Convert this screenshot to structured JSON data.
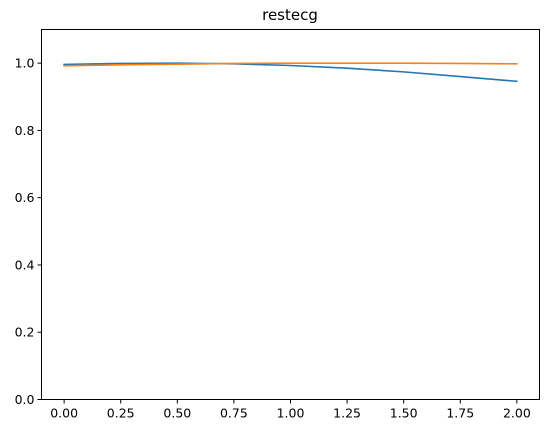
{
  "chart_data": {
    "type": "line",
    "title": "restecg",
    "xlabel": "",
    "ylabel": "",
    "xlim": [
      -0.1,
      2.1
    ],
    "ylim": [
      0.0,
      1.1
    ],
    "xticks": [
      0.0,
      0.25,
      0.5,
      0.75,
      1.0,
      1.25,
      1.5,
      1.75,
      2.0
    ],
    "xtick_labels": [
      "0.00",
      "0.25",
      "0.50",
      "0.75",
      "1.00",
      "1.25",
      "1.50",
      "1.75",
      "2.00"
    ],
    "yticks": [
      0.0,
      0.2,
      0.4,
      0.6,
      0.8,
      1.0
    ],
    "ytick_labels": [
      "0.0",
      "0.2",
      "0.4",
      "0.6",
      "0.8",
      "1.0"
    ],
    "grid": false,
    "legend": "none",
    "series": [
      {
        "color": "#1f77b4",
        "x": [
          0.0,
          0.25,
          0.5,
          0.75,
          1.0,
          1.25,
          1.5,
          1.75,
          2.0
        ],
        "y": [
          0.996,
          0.999,
          1.0,
          0.998,
          0.993,
          0.985,
          0.974,
          0.96,
          0.946
        ]
      },
      {
        "color": "#ff7f0e",
        "x": [
          0.0,
          0.25,
          0.5,
          0.75,
          1.0,
          1.25,
          1.5,
          1.75,
          2.0
        ],
        "y": [
          0.992,
          0.995,
          0.997,
          0.999,
          1.0,
          1.0,
          1.0,
          0.999,
          0.998
        ]
      }
    ]
  }
}
